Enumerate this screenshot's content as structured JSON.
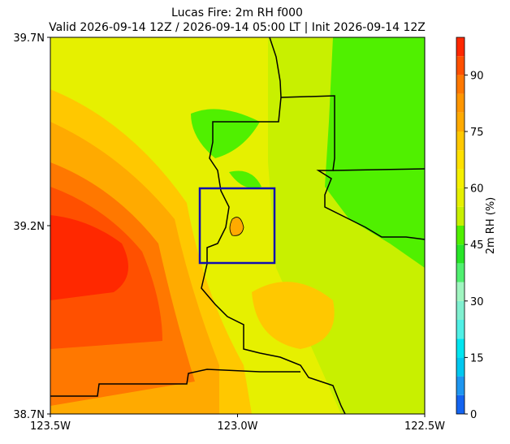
{
  "title": "Lucas Fire: 2m RH f000",
  "subtitle": "Valid 2026-09-14 12Z / 2026-09-14 05:00 LT | Init 2026-09-14 12Z",
  "map": {
    "xlim": [
      -123.5,
      -122.5
    ],
    "ylim": [
      38.7,
      39.7
    ],
    "xticks": [
      {
        "value": -123.5,
        "label": "123.5W"
      },
      {
        "value": -123.0,
        "label": "123.0W"
      },
      {
        "value": -122.5,
        "label": "122.5W"
      }
    ],
    "yticks": [
      {
        "value": 38.7,
        "label": "38.7N"
      },
      {
        "value": 39.2,
        "label": "39.2N"
      },
      {
        "value": 39.7,
        "label": "39.7N"
      }
    ]
  },
  "colorbar": {
    "label": "2m RH (%)",
    "lim": [
      0,
      100
    ],
    "ticks": [
      0,
      15,
      30,
      45,
      60,
      75,
      90
    ],
    "levels": [
      0,
      5,
      10,
      15,
      20,
      25,
      30,
      35,
      40,
      45,
      50,
      55,
      60,
      65,
      70,
      75,
      80,
      85,
      90,
      95,
      100
    ],
    "colors": [
      "#1464f0",
      "#1e96f0",
      "#00c8f0",
      "#00e6f0",
      "#50f0e6",
      "#80f0d0",
      "#a0f5c0",
      "#50f070",
      "#28e628",
      "#50f000",
      "#c8f000",
      "#e6f000",
      "#f5f000",
      "#ffe100",
      "#ffc800",
      "#ffaa00",
      "#ff9600",
      "#ff7800",
      "#ff5000",
      "#ff2800"
    ]
  }
}
